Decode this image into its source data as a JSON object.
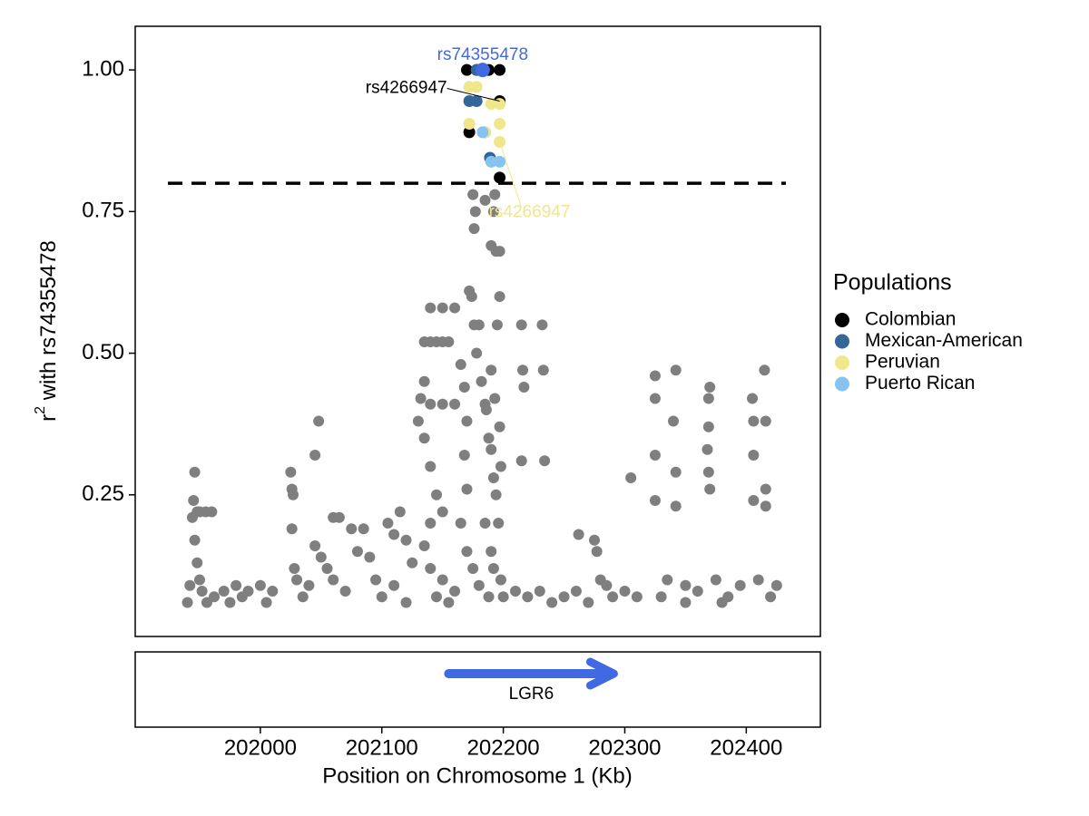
{
  "chart_data": {
    "type": "scatter",
    "x_label": "Position on Chromosome 1 (Kb)",
    "y_label": {
      "base": "r",
      "sup": "2",
      "rest": " with rs74355478"
    },
    "xlim": [
      201897,
      202461
    ],
    "xticks": [
      202000,
      202100,
      202200,
      202300,
      202400
    ],
    "ylim": [
      0.0,
      1.077
    ],
    "yticks": [
      {
        "value": 0.25,
        "label": "0.25"
      },
      {
        "value": 0.5,
        "label": "0.50"
      },
      {
        "value": 0.75,
        "label": "0.75"
      },
      {
        "value": 1.0,
        "label": "1.00"
      }
    ],
    "hline": 0.8,
    "legend_title": "Populations",
    "legend_position": "right",
    "background": {
      "color": "#7f7f7f",
      "x": [
        201940,
        201942,
        201944,
        201945,
        201946,
        201948,
        201950,
        201955,
        201960,
        201946,
        201948,
        201950,
        201952,
        201956,
        201962,
        201970,
        201975,
        201980,
        201985,
        201990,
        202000,
        202005,
        202010,
        202025,
        202026,
        202027,
        202026,
        202028,
        202030,
        202035,
        202040,
        202045,
        202048,
        202045,
        202050,
        202055,
        202060,
        202065,
        202060,
        202070,
        202075,
        202080,
        202085,
        202090,
        202095,
        202100,
        202105,
        202110,
        202115,
        202120,
        202125,
        202110,
        202120,
        202130,
        202132,
        202135,
        202135,
        202140,
        202145,
        202150,
        202155,
        202140,
        202150,
        202160,
        202135,
        202140,
        202150,
        202160,
        202140,
        202145,
        202150,
        202140,
        202135,
        202140,
        202150,
        202160,
        202145,
        202155,
        202165,
        202168,
        202170,
        202168,
        202170,
        202165,
        202170,
        202175,
        202172,
        202174,
        202176,
        202178,
        202180,
        202182,
        202185,
        202186,
        202188,
        202190,
        202192,
        202194,
        202185,
        202190,
        202192,
        202180,
        202188,
        202175,
        202177,
        202176,
        202185,
        202193,
        202192,
        202190,
        202194,
        202197,
        202197,
        202195,
        202190,
        202193,
        202197,
        202198,
        202196,
        202198,
        202200,
        202215,
        202216,
        202217,
        202232,
        202233,
        202234,
        202215,
        202210,
        202220,
        202230,
        202240,
        202250,
        202260,
        202262,
        202275,
        202277,
        202280,
        202270,
        202285,
        202290,
        202300,
        202305,
        202325,
        202325,
        202325,
        202325,
        202335,
        202340,
        202342,
        202342,
        202342,
        202330,
        202350,
        202360,
        202370,
        202369,
        202369,
        202368,
        202369,
        202370,
        202375,
        202385,
        202395,
        202405,
        202406,
        202406,
        202406,
        202415,
        202416,
        202416,
        202416,
        202410,
        202420,
        202425,
        202380,
        202350,
        202310
      ],
      "values": [
        0.06,
        0.09,
        0.21,
        0.24,
        0.29,
        0.22,
        0.22,
        0.22,
        0.22,
        0.17,
        0.13,
        0.1,
        0.08,
        0.06,
        0.07,
        0.08,
        0.06,
        0.09,
        0.07,
        0.08,
        0.09,
        0.06,
        0.08,
        0.29,
        0.26,
        0.25,
        0.19,
        0.12,
        0.1,
        0.07,
        0.09,
        0.32,
        0.38,
        0.16,
        0.14,
        0.12,
        0.21,
        0.21,
        0.1,
        0.08,
        0.19,
        0.15,
        0.19,
        0.14,
        0.1,
        0.07,
        0.2,
        0.18,
        0.22,
        0.17,
        0.13,
        0.09,
        0.06,
        0.38,
        0.42,
        0.45,
        0.52,
        0.52,
        0.52,
        0.52,
        0.52,
        0.58,
        0.58,
        0.58,
        0.35,
        0.41,
        0.41,
        0.41,
        0.3,
        0.25,
        0.22,
        0.2,
        0.16,
        0.12,
        0.1,
        0.08,
        0.07,
        0.06,
        0.48,
        0.44,
        0.38,
        0.32,
        0.26,
        0.2,
        0.15,
        0.12,
        0.61,
        0.6,
        0.55,
        0.5,
        0.55,
        0.45,
        0.41,
        0.4,
        0.35,
        0.33,
        0.28,
        0.25,
        0.2,
        0.15,
        0.12,
        0.09,
        0.07,
        0.78,
        0.75,
        0.72,
        0.77,
        0.78,
        0.75,
        0.69,
        0.68,
        0.68,
        0.6,
        0.55,
        0.47,
        0.42,
        0.37,
        0.3,
        0.2,
        0.1,
        0.07,
        0.55,
        0.47,
        0.44,
        0.55,
        0.47,
        0.31,
        0.31,
        0.08,
        0.07,
        0.08,
        0.06,
        0.07,
        0.08,
        0.18,
        0.17,
        0.15,
        0.1,
        0.06,
        0.09,
        0.07,
        0.08,
        0.28,
        0.46,
        0.42,
        0.32,
        0.24,
        0.1,
        0.38,
        0.47,
        0.29,
        0.23,
        0.07,
        0.09,
        0.08,
        0.44,
        0.42,
        0.37,
        0.33,
        0.29,
        0.26,
        0.1,
        0.07,
        0.09,
        0.42,
        0.38,
        0.32,
        0.24,
        0.47,
        0.38,
        0.26,
        0.23,
        0.1,
        0.07,
        0.09,
        0.06,
        0.06,
        0.07
      ]
    },
    "series": [
      {
        "name": "Colombian",
        "color": "#000000",
        "x": [
          202170,
          202178,
          202188,
          202197,
          202197,
          202172,
          202197
        ],
        "values": [
          1.0,
          1.0,
          1.0,
          1.0,
          0.945,
          0.89,
          0.81
        ]
      },
      {
        "name": "Mexican-American",
        "color": "#336699",
        "x": [
          202172,
          202178,
          202178,
          202185,
          202189
        ],
        "values": [
          0.945,
          0.945,
          1.0,
          0.89,
          0.845
        ]
      },
      {
        "name": "Peruvian",
        "color": "#f0e68c",
        "x": [
          202172,
          202178,
          202190,
          202197,
          202197,
          202172,
          202197,
          202185
        ],
        "values": [
          0.97,
          0.97,
          0.94,
          0.94,
          0.905,
          0.905,
          0.873,
          0.89
        ]
      },
      {
        "name": "Puerto Rican",
        "color": "#87c3f0",
        "x": [
          202183,
          202190,
          202197
        ],
        "values": [
          0.89,
          0.838,
          0.838
        ]
      }
    ],
    "lead": {
      "x": 202183,
      "y": 1.0,
      "color": "#4169e1"
    },
    "annotations": [
      {
        "text": "rs74355478",
        "x": 202183,
        "y": 1.0,
        "color": "#4169e1"
      },
      {
        "text": "rs4266947",
        "x": 202197,
        "y": 0.945,
        "color": "#000000"
      },
      {
        "text": "rs4266947",
        "x": 202197,
        "y": 0.873,
        "color": "#f0e68c"
      }
    ],
    "gene": {
      "name": "LGR6",
      "start": 202155,
      "end": 202291,
      "color": "#4169e1"
    }
  }
}
